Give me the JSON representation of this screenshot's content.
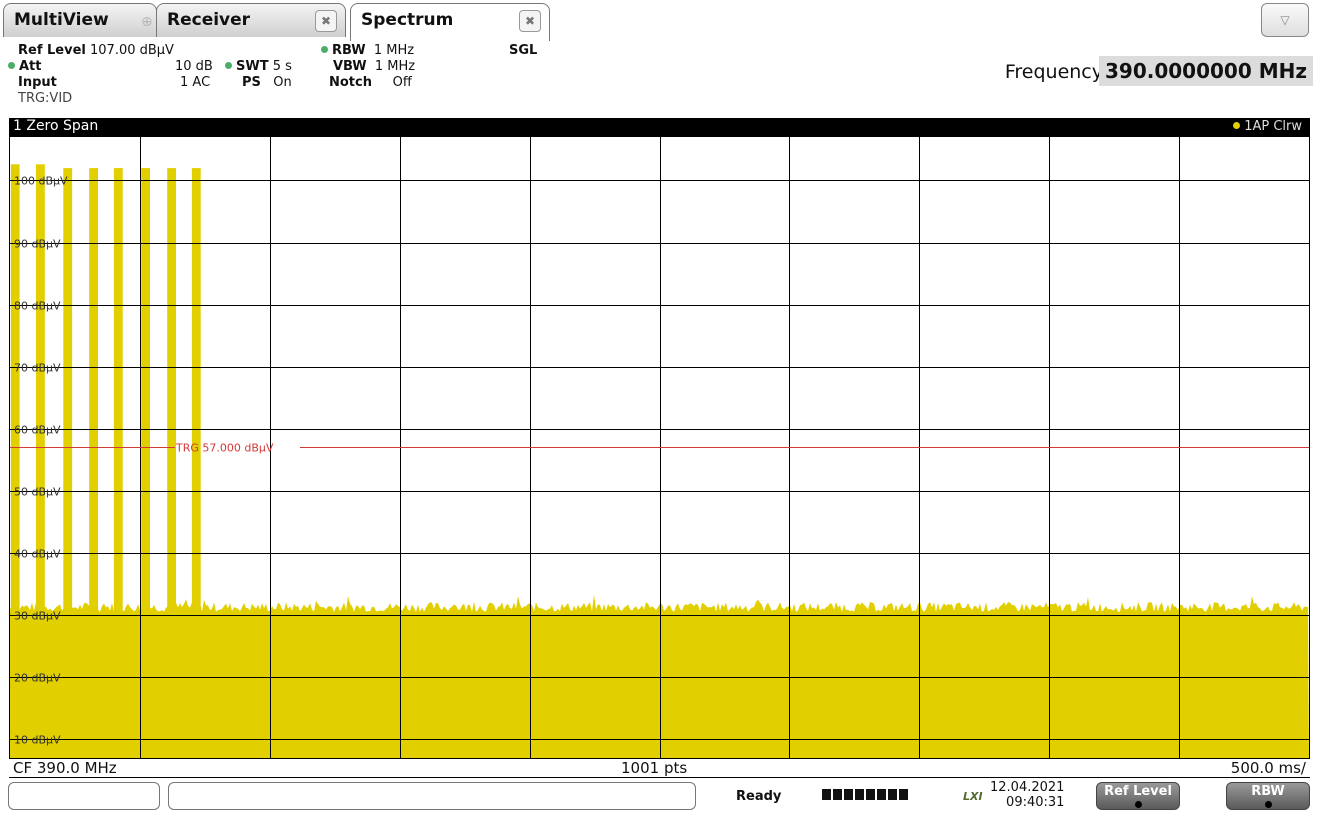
{
  "tabs": [
    {
      "label": "MultiView"
    },
    {
      "label": "Receiver"
    },
    {
      "label": "Spectrum"
    }
  ],
  "status": {
    "ref_level_label": "Ref Level",
    "ref_level_value": "107.00 dBµV",
    "att_label": "Att",
    "att_value": "10 dB",
    "input_label": "Input",
    "input_value": "1 AC",
    "trg_text": "TRG:VID",
    "swt_label": "SWT",
    "swt_value": "5 s",
    "ps_label": "PS",
    "ps_value": "On",
    "rbw_label": "RBW",
    "rbw_value": "1 MHz",
    "vbw_label": "VBW",
    "vbw_value": "1 MHz",
    "notch_label": "Notch",
    "notch_value": "Off",
    "sgl": "SGL",
    "frequency_label": "Frequency",
    "frequency_value": "390.0000000 MHz"
  },
  "diagram": {
    "title": "1 Zero Span",
    "trace_label": "1AP Clrw",
    "footer_left": "CF 390.0 MHz",
    "footer_center": "1001 pts",
    "footer_right": "500.0 ms/"
  },
  "chart_data": {
    "type": "area",
    "ylabel_unit": "dBµV",
    "y_tick_labels": [
      "100 dBµV",
      "90 dBµV",
      "80 dBµV",
      "70 dBµV",
      "60 dBµV",
      "50 dBµV",
      "40 dBµV",
      "30 dBµV",
      "20 dBµV",
      "10 dBµV"
    ],
    "y_ticks": [
      100,
      90,
      80,
      70,
      60,
      50,
      40,
      30,
      20,
      10
    ],
    "ylim": [
      7,
      107
    ],
    "xlim_s": [
      0,
      5
    ],
    "x_divisions": 10,
    "noise_floor_dbuv": 31,
    "pulse_peak_dbuv": 102,
    "pulse_count": 8,
    "pulse_start_times_s": [
      0.003,
      0.1,
      0.205,
      0.305,
      0.4,
      0.505,
      0.605,
      0.7
    ],
    "pulse_widths_s": [
      0.034,
      0.034,
      0.034,
      0.034,
      0.034,
      0.034,
      0.034,
      0.034
    ],
    "trigger_level_dbuv": 57.0,
    "trigger_label": "TRG 57.000 dBµV",
    "trace_color": "#e2cf00",
    "trigger_color": "#d23a3a",
    "grid": true
  },
  "bottom": {
    "ready": "Ready",
    "lxi": "LXI",
    "date": "12.04.2021",
    "time": "09:40:31",
    "softkey1": "Ref Level",
    "softkey2": "RBW"
  }
}
